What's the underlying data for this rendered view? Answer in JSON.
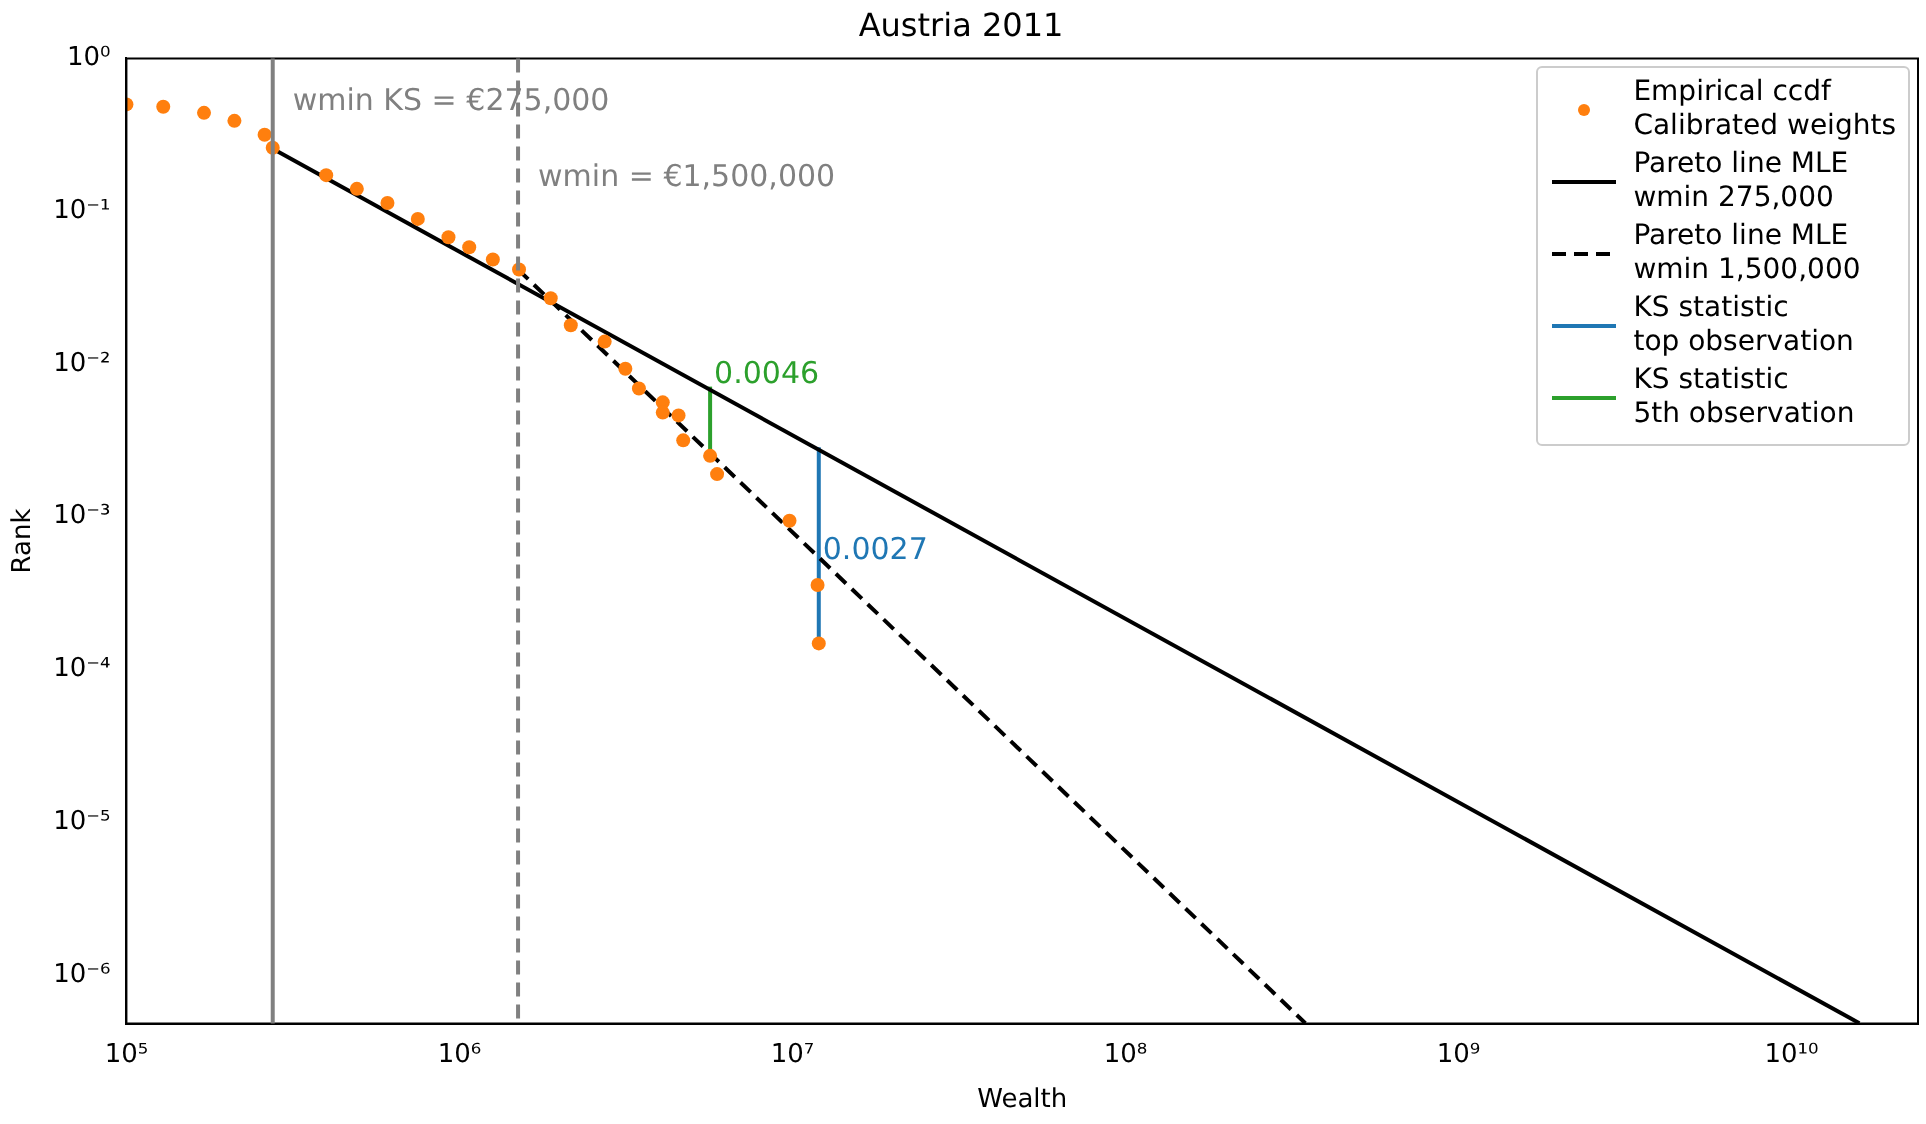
{
  "chart_data": {
    "type": "scatter",
    "title": "Austria 2011",
    "xlabel": "Wealth",
    "ylabel": "Rank",
    "log": "xy",
    "grid": false,
    "legend": "top right",
    "xlim": [
      100000,
      24000000000
    ],
    "ylim": [
      4.8e-07,
      1
    ],
    "xticks": [
      {
        "value": 100000,
        "label": "10⁵"
      },
      {
        "value": 1000000,
        "label": "10⁶"
      },
      {
        "value": 10000000,
        "label": "10⁷"
      },
      {
        "value": 100000000,
        "label": "10⁸"
      },
      {
        "value": 1000000000,
        "label": "10⁹"
      },
      {
        "value": 10000000000,
        "label": "10¹⁰"
      }
    ],
    "yticks": [
      {
        "value": 1e-06,
        "label": "10⁻⁶"
      },
      {
        "value": 1e-05,
        "label": "10⁻⁵"
      },
      {
        "value": 0.0001,
        "label": "10⁻⁴"
      },
      {
        "value": 0.001,
        "label": "10⁻³"
      },
      {
        "value": 0.01,
        "label": "10⁻²"
      },
      {
        "value": 0.1,
        "label": "10⁻¹"
      },
      {
        "value": 1,
        "label": "10⁰"
      }
    ],
    "series": [
      {
        "name": "Empirical ccdf\nCalibrated weights",
        "type": "scatter",
        "marker": "circle",
        "color": "#ff7f0e",
        "x": [
          100000,
          129000,
          171000,
          211000,
          260000,
          275000,
          398000,
          492000,
          608000,
          750000,
          927000,
          1070000,
          1260000,
          1510000,
          1880000,
          2160000,
          2730000,
          3150000,
          3460000,
          4080000,
          4080000,
          4550000,
          4700000,
          5660000,
          5940000,
          9800000,
          11900000,
          12000000
        ],
        "values": [
          0.5,
          0.483,
          0.44,
          0.39,
          0.316,
          0.26,
          0.172,
          0.14,
          0.113,
          0.089,
          0.0675,
          0.058,
          0.0483,
          0.0415,
          0.0269,
          0.0179,
          0.014,
          0.0093,
          0.0069,
          0.0056,
          0.0048,
          0.0046,
          0.00316,
          0.0025,
          0.0019,
          0.00094,
          0.000357,
          0.000148
        ]
      },
      {
        "name": "Pareto line MLE\nwmin 275,000",
        "type": "line",
        "marker": "none",
        "line_style": "solid",
        "color": "#000000",
        "x": [
          275000,
          16000000000
        ],
        "values": [
          0.256,
          4.83e-07
        ]
      },
      {
        "name": "Pareto line MLE\nwmin 1,500,000",
        "type": "line",
        "marker": "none",
        "line_style": "dashed",
        "color": "#000000",
        "x": [
          1500000,
          347000000
        ],
        "values": [
          0.0415,
          4.83e-07
        ]
      },
      {
        "name": "KS statistic\ntop observation",
        "type": "line",
        "marker": "none",
        "line_style": "solid",
        "color": "#1f77b4",
        "x": [
          12000000,
          12000000
        ],
        "values": [
          0.000148,
          0.00285
        ]
      },
      {
        "name": "KS statistic\n5th observation",
        "type": "line",
        "marker": "none",
        "line_style": "solid",
        "color": "#2ca02c",
        "x": [
          5660000,
          5660000
        ],
        "values": [
          0.0025,
          0.0071
        ]
      }
    ],
    "ref_lines": [
      {
        "axis": "x",
        "value": 275000,
        "label": "wmin KS = €275,000",
        "color": "#808080",
        "line_style": "solid"
      },
      {
        "axis": "x",
        "value": 1500000,
        "label": "wmin = €1,500,000",
        "color": "#808080",
        "line_style": "dashed"
      }
    ],
    "annotations": [
      {
        "text": "0.0046",
        "x": 5660000,
        "y": 0.0071
      },
      {
        "text": "0.0027",
        "x": 12000000,
        "y": 0.0005
      }
    ]
  }
}
